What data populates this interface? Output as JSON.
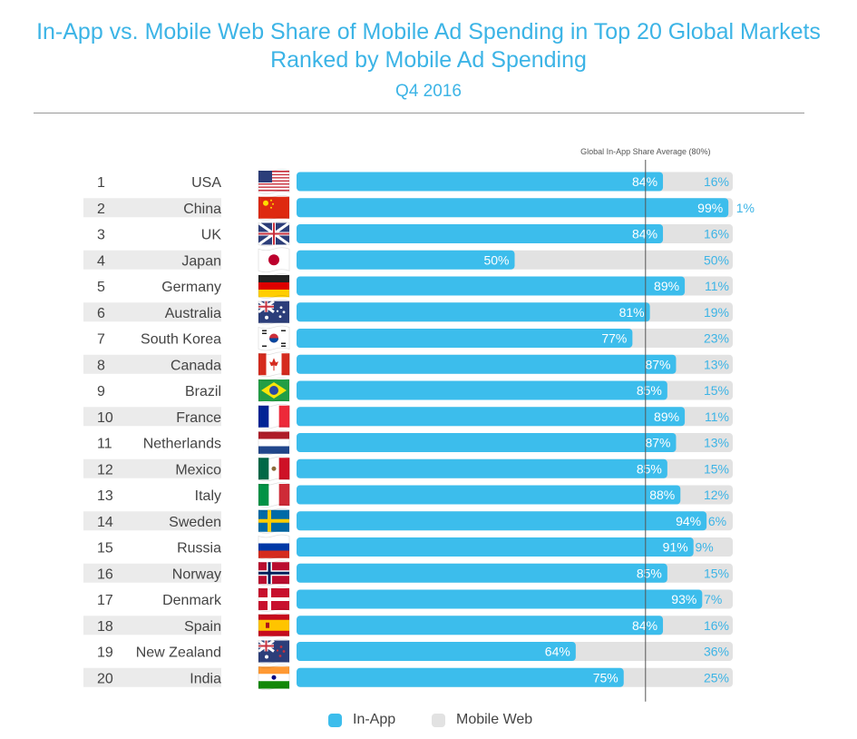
{
  "header": {
    "title_line1": "In-App vs. Mobile Web Share of Mobile Ad Spending in Top 20 Global Markets",
    "title_line2": "Ranked by Mobile Ad Spending",
    "subtitle": "Q4 2016"
  },
  "colors": {
    "in_app": "#3cbdec",
    "mobile_web": "#e2e2e2",
    "label_blue": "#3cb4e6",
    "row_band": "#ebebeb"
  },
  "chart_data": {
    "type": "bar",
    "stacked": true,
    "orientation": "horizontal",
    "annotation": "Global In-App Share Average (80%)",
    "reference_value": 80,
    "xlim": [
      0,
      100
    ],
    "rows": [
      {
        "rank": "1",
        "country": "USA",
        "flag": "usa-flag-icon",
        "in_app": 84,
        "mobile_web": 16
      },
      {
        "rank": "2",
        "country": "China",
        "flag": "china-flag-icon",
        "in_app": 99,
        "mobile_web": 1
      },
      {
        "rank": "3",
        "country": "UK",
        "flag": "uk-flag-icon",
        "in_app": 84,
        "mobile_web": 16
      },
      {
        "rank": "4",
        "country": "Japan",
        "flag": "japan-flag-icon",
        "in_app": 50,
        "mobile_web": 50
      },
      {
        "rank": "5",
        "country": "Germany",
        "flag": "germany-flag-icon",
        "in_app": 89,
        "mobile_web": 11
      },
      {
        "rank": "6",
        "country": "Australia",
        "flag": "australia-flag-icon",
        "in_app": 81,
        "mobile_web": 19
      },
      {
        "rank": "7",
        "country": "South Korea",
        "flag": "south-korea-flag-icon",
        "in_app": 77,
        "mobile_web": 23
      },
      {
        "rank": "8",
        "country": "Canada",
        "flag": "canada-flag-icon",
        "in_app": 87,
        "mobile_web": 13
      },
      {
        "rank": "9",
        "country": "Brazil",
        "flag": "brazil-flag-icon",
        "in_app": 85,
        "mobile_web": 15
      },
      {
        "rank": "10",
        "country": "France",
        "flag": "france-flag-icon",
        "in_app": 89,
        "mobile_web": 11
      },
      {
        "rank": "11",
        "country": "Netherlands",
        "flag": "netherlands-flag-icon",
        "in_app": 87,
        "mobile_web": 13
      },
      {
        "rank": "12",
        "country": "Mexico",
        "flag": "mexico-flag-icon",
        "in_app": 85,
        "mobile_web": 15
      },
      {
        "rank": "13",
        "country": "Italy",
        "flag": "italy-flag-icon",
        "in_app": 88,
        "mobile_web": 12
      },
      {
        "rank": "14",
        "country": "Sweden",
        "flag": "sweden-flag-icon",
        "in_app": 94,
        "mobile_web": 6
      },
      {
        "rank": "15",
        "country": "Russia",
        "flag": "russia-flag-icon",
        "in_app": 91,
        "mobile_web": 9
      },
      {
        "rank": "16",
        "country": "Norway",
        "flag": "norway-flag-icon",
        "in_app": 85,
        "mobile_web": 15
      },
      {
        "rank": "17",
        "country": "Denmark",
        "flag": "denmark-flag-icon",
        "in_app": 93,
        "mobile_web": 7
      },
      {
        "rank": "18",
        "country": "Spain",
        "flag": "spain-flag-icon",
        "in_app": 84,
        "mobile_web": 16
      },
      {
        "rank": "19",
        "country": "New Zealand",
        "flag": "new-zealand-flag-icon",
        "in_app": 64,
        "mobile_web": 36
      },
      {
        "rank": "20",
        "country": "India",
        "flag": "india-flag-icon",
        "in_app": 75,
        "mobile_web": 25
      }
    ],
    "legend": {
      "position": "bottom",
      "items": [
        {
          "key": "in_app",
          "label": "In-App"
        },
        {
          "key": "mobile_web",
          "label": "Mobile Web"
        }
      ]
    }
  }
}
